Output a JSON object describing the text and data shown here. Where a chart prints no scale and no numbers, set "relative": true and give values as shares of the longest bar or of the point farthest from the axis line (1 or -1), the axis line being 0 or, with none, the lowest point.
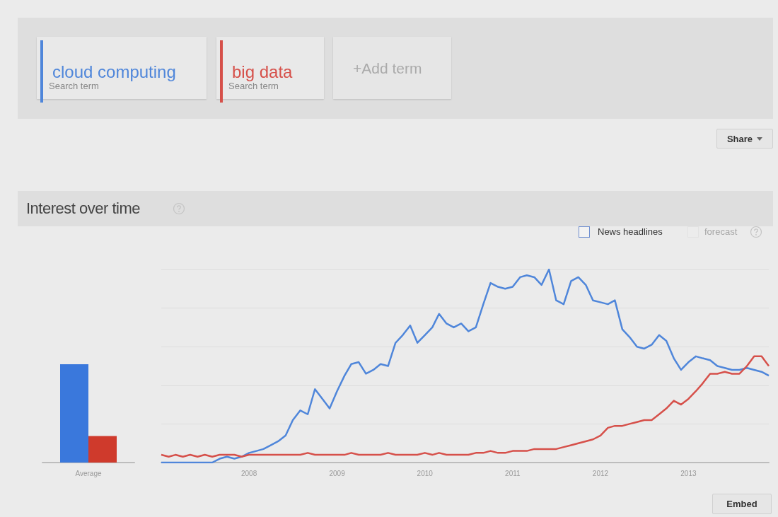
{
  "chart_data": [
    {
      "type": "bar",
      "categories": [
        "Average"
      ],
      "relative": true,
      "series": [
        {
          "color": "#3a78dc",
          "values": [
            1
          ]
        },
        {
          "color": "#cf3a2c",
          "values": [
            0.27
          ]
        }
      ]
    },
    {
      "type": "line",
      "title": "Interest over time",
      "relative": true,
      "grid": "y",
      "legend": "top left",
      "annotations": [
        "Search term",
        "Search term",
        "+Add term",
        "Share",
        "News headlines",
        "forecast",
        "Embed"
      ],
      "xlim": [
        "2007-01",
        "2013-12"
      ],
      "xticks": [
        "2008",
        "2009",
        "2010",
        "2011",
        "2012",
        "2013"
      ],
      "x": [
        "2007-01",
        "2007-02",
        "2007-03",
        "2007-04",
        "2007-05",
        "2007-06",
        "2007-07",
        "2007-08",
        "2007-09",
        "2007-10",
        "2007-11",
        "2007-12",
        "2008-01",
        "2008-02",
        "2008-03",
        "2008-04",
        "2008-05",
        "2008-06",
        "2008-07",
        "2008-08",
        "2008-09",
        "2008-10",
        "2008-11",
        "2008-12",
        "2009-01",
        "2009-02",
        "2009-03",
        "2009-04",
        "2009-05",
        "2009-06",
        "2009-07",
        "2009-08",
        "2009-09",
        "2009-10",
        "2009-11",
        "2009-12",
        "2010-01",
        "2010-02",
        "2010-03",
        "2010-04",
        "2010-05",
        "2010-06",
        "2010-07",
        "2010-08",
        "2010-09",
        "2010-10",
        "2010-11",
        "2010-12",
        "2011-01",
        "2011-02",
        "2011-03",
        "2011-04",
        "2011-05",
        "2011-06",
        "2011-07",
        "2011-08",
        "2011-09",
        "2011-10",
        "2011-11",
        "2011-12",
        "2012-01",
        "2012-02",
        "2012-03",
        "2012-04",
        "2012-05",
        "2012-06",
        "2012-07",
        "2012-08",
        "2012-09",
        "2012-10",
        "2012-11",
        "2012-12",
        "2013-01",
        "2013-02",
        "2013-03",
        "2013-04",
        "2013-05",
        "2013-06",
        "2013-07",
        "2013-08",
        "2013-09",
        "2013-10",
        "2013-11",
        "2013-12"
      ],
      "series": [
        {
          "name": "cloud computing",
          "color": "#4f86da",
          "values": [
            0,
            0,
            0,
            0,
            0,
            0,
            0,
            0,
            0.02,
            0.03,
            0.02,
            0.03,
            0.05,
            0.06,
            0.07,
            0.09,
            0.11,
            0.14,
            0.22,
            0.27,
            0.25,
            0.38,
            0.33,
            0.28,
            0.37,
            0.45,
            0.51,
            0.52,
            0.46,
            0.48,
            0.51,
            0.5,
            0.62,
            0.66,
            0.71,
            0.62,
            0.66,
            0.7,
            0.77,
            0.72,
            0.7,
            0.72,
            0.68,
            0.7,
            0.82,
            0.93,
            0.91,
            0.9,
            0.91,
            0.96,
            0.97,
            0.96,
            0.92,
            1.0,
            0.84,
            0.82,
            0.94,
            0.96,
            0.92,
            0.84,
            0.83,
            0.82,
            0.84,
            0.69,
            0.65,
            0.6,
            0.59,
            0.61,
            0.66,
            0.63,
            0.54,
            0.48,
            0.52,
            0.55,
            0.54,
            0.53,
            0.5,
            0.49,
            0.48,
            0.48,
            0.49,
            0.48,
            0.47,
            0.45
          ]
        },
        {
          "name": "big data",
          "color": "#d6504a",
          "values": [
            0.04,
            0.03,
            0.04,
            0.03,
            0.04,
            0.03,
            0.04,
            0.03,
            0.04,
            0.04,
            0.04,
            0.03,
            0.04,
            0.04,
            0.04,
            0.04,
            0.04,
            0.04,
            0.04,
            0.04,
            0.05,
            0.04,
            0.04,
            0.04,
            0.04,
            0.04,
            0.05,
            0.04,
            0.04,
            0.04,
            0.04,
            0.05,
            0.04,
            0.04,
            0.04,
            0.04,
            0.05,
            0.04,
            0.05,
            0.04,
            0.04,
            0.04,
            0.04,
            0.05,
            0.05,
            0.06,
            0.05,
            0.05,
            0.06,
            0.06,
            0.06,
            0.07,
            0.07,
            0.07,
            0.07,
            0.08,
            0.09,
            0.1,
            0.11,
            0.12,
            0.14,
            0.18,
            0.19,
            0.19,
            0.2,
            0.21,
            0.22,
            0.22,
            0.25,
            0.28,
            0.32,
            0.3,
            0.33,
            0.37,
            0.41,
            0.46,
            0.46,
            0.47,
            0.46,
            0.46,
            0.5,
            0.55,
            0.55,
            0.5
          ]
        }
      ]
    }
  ]
}
